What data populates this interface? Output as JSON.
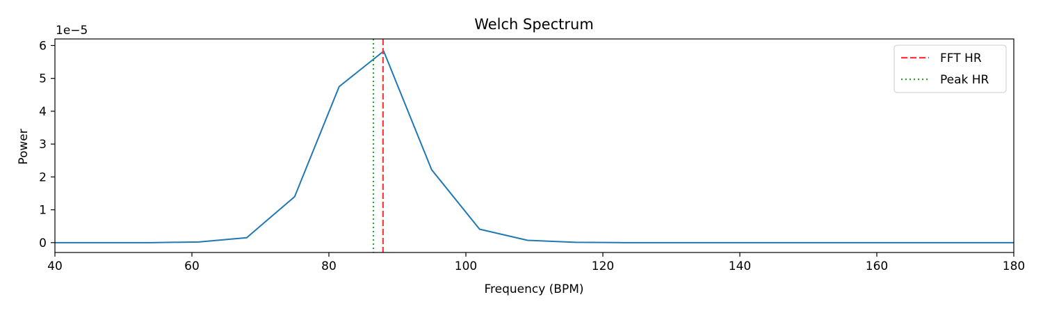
{
  "chart_data": {
    "type": "line",
    "title": "Welch Spectrum",
    "xlabel": "Frequency (BPM)",
    "ylabel": "Power",
    "y_offset_text": "1e−5",
    "xlim": [
      40,
      180
    ],
    "ylim": [
      -0.3,
      6.2
    ],
    "x_ticks": [
      40,
      60,
      80,
      100,
      120,
      140,
      160,
      180
    ],
    "y_ticks": [
      0,
      1,
      2,
      3,
      4,
      5,
      6
    ],
    "grid": false,
    "legend_position": "top-right",
    "series": [
      {
        "color": "#1f77b4",
        "x": [
          40,
          47,
          54,
          61,
          68,
          75,
          81.5,
          88,
          95,
          102,
          109,
          116,
          123,
          130,
          140,
          150,
          160,
          170,
          180
        ],
        "y": [
          0.0,
          0.0,
          0.0,
          0.02,
          0.15,
          1.4,
          4.75,
          5.83,
          2.22,
          0.41,
          0.07,
          0.01,
          0.0,
          0.0,
          0.0,
          0.0,
          0.0,
          0.0,
          0.0
        ]
      }
    ],
    "vlines": [
      {
        "name": "FFT HR",
        "x": 87.9,
        "color": "#ff3333",
        "style": "dashed"
      },
      {
        "name": "Peak HR",
        "x": 86.5,
        "color": "#2ca02c",
        "style": "dotted"
      }
    ]
  }
}
